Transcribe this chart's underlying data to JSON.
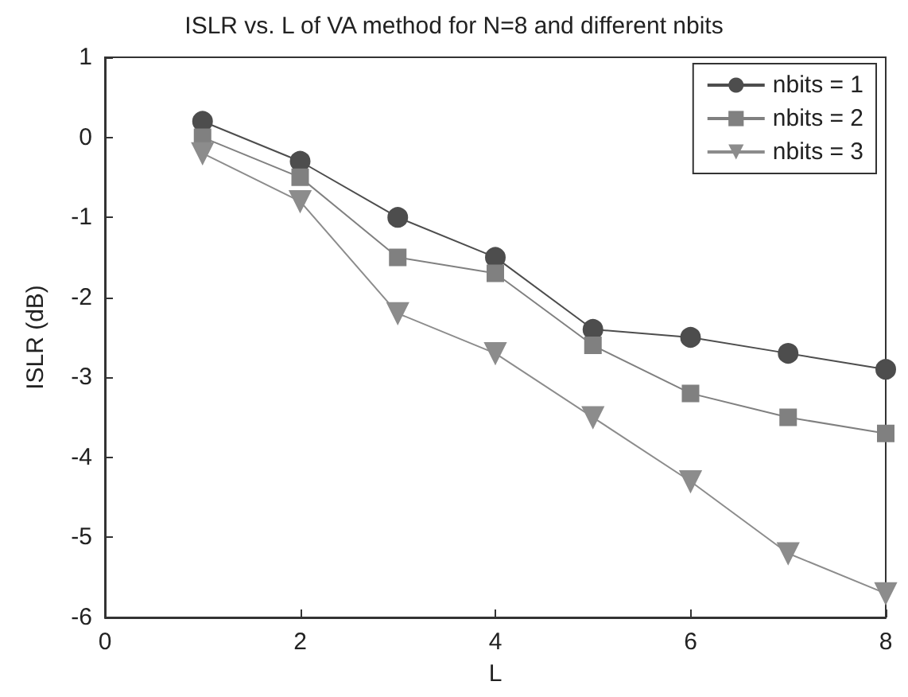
{
  "chart_data": {
    "type": "line",
    "title": "ISLR vs. L of VA method for N=8 and different nbits",
    "xlabel": "L",
    "ylabel": "ISLR (dB)",
    "x": [
      1,
      2,
      3,
      4,
      5,
      6,
      7,
      8
    ],
    "series": [
      {
        "name": "nbits = 1",
        "color": "#4d4d4d",
        "marker": "circle",
        "values": [
          0.2,
          -0.3,
          -1.0,
          -1.5,
          -2.4,
          -2.5,
          -2.7,
          -2.9
        ]
      },
      {
        "name": "nbits = 2",
        "color": "#808080",
        "marker": "square",
        "values": [
          0.0,
          -0.5,
          -1.5,
          -1.7,
          -2.6,
          -3.2,
          -3.5,
          -3.7
        ]
      },
      {
        "name": "nbits = 3",
        "color": "#8c8c8c",
        "marker": "triangle",
        "values": [
          -0.2,
          -0.8,
          -2.2,
          -2.7,
          -3.5,
          -4.3,
          -5.2,
          -5.7
        ]
      }
    ],
    "xlim": [
      0,
      8
    ],
    "xticks": [
      0,
      2,
      4,
      6,
      8
    ],
    "ylim": [
      -6,
      1
    ],
    "yticks": [
      -6,
      -5,
      -4,
      -3,
      -2,
      -1,
      0,
      1
    ],
    "grid": false,
    "legend": "top right",
    "line_style": "solid"
  }
}
